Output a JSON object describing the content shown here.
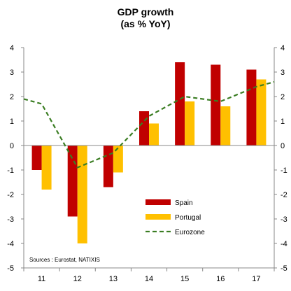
{
  "chart_data": {
    "type": "bar",
    "title": "GDP growth",
    "subtitle": "(as % YoY)",
    "categories": [
      "11",
      "12",
      "13",
      "14",
      "15",
      "16",
      "17"
    ],
    "series": [
      {
        "name": "Spain",
        "kind": "bar",
        "color": "#c00000",
        "values": [
          -1.0,
          -2.9,
          -1.7,
          1.4,
          3.4,
          3.3,
          3.1
        ]
      },
      {
        "name": "Portugal",
        "kind": "bar",
        "color": "#ffc000",
        "values": [
          -1.8,
          -4.0,
          -1.1,
          0.9,
          1.8,
          1.6,
          2.7
        ]
      },
      {
        "name": "Eurozone",
        "kind": "line",
        "style": "dashed",
        "color": "#3a7d22",
        "values": [
          1.7,
          -0.9,
          -0.3,
          1.2,
          2.0,
          1.8,
          2.4
        ]
      }
    ],
    "line_x_extent": [
      -0.5,
      6.5
    ],
    "line_edge_values": [
      1.9,
      2.6
    ],
    "ylim": [
      -5,
      4
    ],
    "yticks": [
      -5,
      -4,
      -3,
      -2,
      -1,
      0,
      1,
      2,
      3,
      4
    ],
    "ytick_labels": [
      "-5",
      "-4",
      "-3",
      "-2",
      "-1",
      "0",
      "1",
      "2",
      "3",
      "4"
    ],
    "secondary_y_axis": true,
    "grid": false,
    "legend_placement": "lower-right",
    "annotation": "Sources : Eurostat, NATIXIS",
    "xlabel": "",
    "ylabel": ""
  }
}
